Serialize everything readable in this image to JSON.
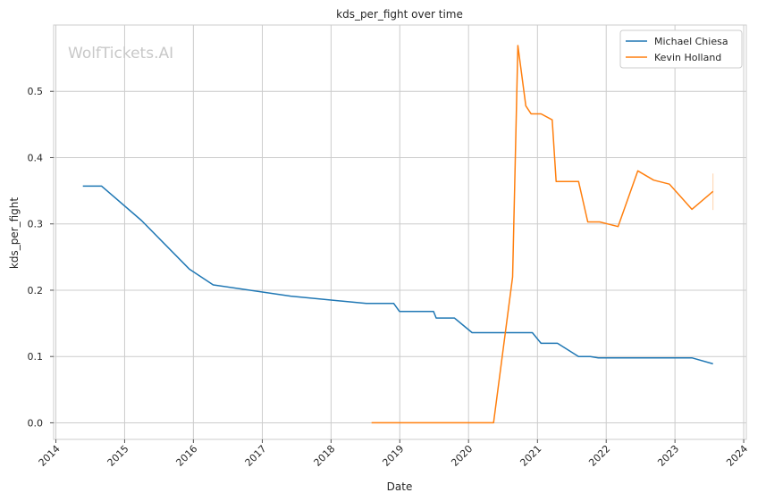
{
  "chart_data": {
    "type": "line",
    "title": "kds_per_fight over time",
    "xlabel": "Date",
    "ylabel": "kds_per_fight",
    "watermark": "WolfTickets.AI",
    "xlim": [
      "2013-12-20",
      "2024-01-15"
    ],
    "ylim": [
      -0.025,
      0.6
    ],
    "x_ticks": [
      "2014",
      "2015",
      "2016",
      "2017",
      "2018",
      "2019",
      "2020",
      "2021",
      "2022",
      "2023",
      "2024"
    ],
    "y_ticks": [
      0.0,
      0.1,
      0.2,
      0.3,
      0.4,
      0.5
    ],
    "grid": true,
    "legend_position": "top-right",
    "series": [
      {
        "name": "Michael Chiesa",
        "color": "#1f77b4",
        "points": [
          [
            "2014-05-24",
            0.357
          ],
          [
            "2014-09-01",
            0.357
          ],
          [
            "2015-04-01",
            0.305
          ],
          [
            "2015-12-10",
            0.232
          ],
          [
            "2016-04-15",
            0.208
          ],
          [
            "2017-06-01",
            0.191
          ],
          [
            "2018-07-07",
            0.18
          ],
          [
            "2018-11-30",
            0.18
          ],
          [
            "2018-12-30",
            0.168
          ],
          [
            "2019-06-29",
            0.168
          ],
          [
            "2019-07-13",
            0.158
          ],
          [
            "2019-10-18",
            0.158
          ],
          [
            "2020-01-20",
            0.136
          ],
          [
            "2020-12-05",
            0.136
          ],
          [
            "2021-01-20",
            0.12
          ],
          [
            "2021-04-17",
            0.12
          ],
          [
            "2021-08-07",
            0.1
          ],
          [
            "2021-10-09",
            0.1
          ],
          [
            "2021-11-20",
            0.098
          ],
          [
            "2023-04-01",
            0.098
          ],
          [
            "2023-07-22",
            0.089
          ]
        ]
      },
      {
        "name": "Kevin Holland",
        "color": "#ff7f0e",
        "points": [
          [
            "2018-08-04",
            0.0
          ],
          [
            "2020-05-13",
            0.0
          ],
          [
            "2020-08-22",
            0.22
          ],
          [
            "2020-09-19",
            0.569
          ],
          [
            "2020-10-31",
            0.478
          ],
          [
            "2020-11-28",
            0.466
          ],
          [
            "2021-01-20",
            0.466
          ],
          [
            "2021-03-20",
            0.457
          ],
          [
            "2021-04-10",
            0.364
          ],
          [
            "2021-08-07",
            0.364
          ],
          [
            "2021-09-25",
            0.303
          ],
          [
            "2021-11-27",
            0.303
          ],
          [
            "2022-03-05",
            0.296
          ],
          [
            "2022-06-18",
            0.38
          ],
          [
            "2022-09-10",
            0.366
          ],
          [
            "2022-12-03",
            0.36
          ],
          [
            "2023-04-01",
            0.322
          ],
          [
            "2023-07-22",
            0.349
          ]
        ],
        "error_bar": {
          "date": "2023-07-22",
          "low": 0.321,
          "high": 0.376
        }
      }
    ]
  }
}
